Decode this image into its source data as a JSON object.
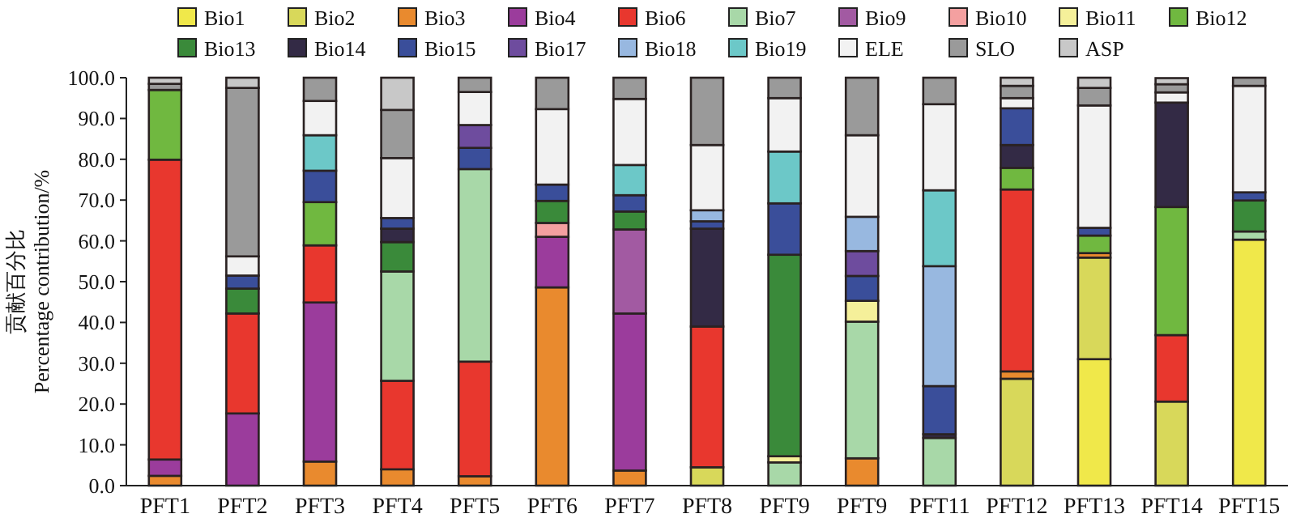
{
  "chart_data": {
    "type": "bar",
    "stacked": true,
    "ylabel": "贡献百分比\nPercentage contribution/%",
    "categories": [
      "PFT1",
      "PFT2",
      "PFT3",
      "PFT4",
      "PFT5",
      "PFT6",
      "PFT7",
      "PFT8",
      "PFT9",
      "PFT9",
      "PFT11",
      "PFT12",
      "PFT13",
      "PFT14",
      "PFT15"
    ],
    "ylim": [
      0,
      100
    ],
    "yticks": [
      {
        "value": 0,
        "label": "0.0"
      },
      {
        "value": 10,
        "label": "10.0"
      },
      {
        "value": 20,
        "label": "20.0"
      },
      {
        "value": 30,
        "label": "30.0"
      },
      {
        "value": 40,
        "label": "40.0"
      },
      {
        "value": 50,
        "label": "50.0"
      },
      {
        "value": 60,
        "label": "60.0"
      },
      {
        "value": 70,
        "label": "70.0"
      },
      {
        "value": 80,
        "label": "80.0"
      },
      {
        "value": 90,
        "label": "90.0"
      },
      {
        "value": 100,
        "label": "100.0"
      }
    ],
    "grid": false,
    "legend": "top",
    "series": [
      {
        "name": "Bio1",
        "color": "#f0e84a",
        "values": [
          null,
          null,
          null,
          null,
          null,
          null,
          null,
          null,
          null,
          null,
          null,
          null,
          31.0,
          null,
          60.3
        ]
      },
      {
        "name": "Bio2",
        "color": "#d8d85a",
        "values": [
          null,
          null,
          null,
          null,
          null,
          null,
          null,
          4.5,
          null,
          null,
          null,
          26.2,
          24.9,
          20.6,
          null
        ]
      },
      {
        "name": "Bio3",
        "color": "#e98a2e",
        "values": [
          2.4,
          null,
          5.9,
          4.0,
          2.3,
          48.6,
          3.7,
          null,
          null,
          6.7,
          null,
          1.8,
          1.1,
          null,
          null
        ]
      },
      {
        "name": "Bio4",
        "color": "#9b3c9c",
        "values": [
          4.0,
          17.7,
          39.0,
          null,
          null,
          12.4,
          38.5,
          null,
          null,
          null,
          null,
          null,
          null,
          null,
          null
        ]
      },
      {
        "name": "Bio6",
        "color": "#e8372e",
        "values": [
          73.5,
          24.5,
          14.0,
          21.7,
          28.1,
          null,
          null,
          34.5,
          null,
          null,
          null,
          44.6,
          null,
          16.3,
          null
        ]
      },
      {
        "name": "Bio7",
        "color": "#a8d8a8",
        "values": [
          null,
          null,
          null,
          26.8,
          47.2,
          null,
          null,
          null,
          5.7,
          33.5,
          11.7,
          null,
          null,
          null,
          2.0
        ]
      },
      {
        "name": "Bio9",
        "color": "#a25aa2",
        "values": [
          null,
          null,
          null,
          null,
          null,
          null,
          20.6,
          null,
          null,
          null,
          null,
          null,
          null,
          null,
          null
        ]
      },
      {
        "name": "Bio10",
        "color": "#f4a0a0",
        "values": [
          null,
          null,
          null,
          null,
          null,
          3.4,
          null,
          null,
          null,
          null,
          null,
          null,
          null,
          null,
          null
        ]
      },
      {
        "name": "Bio11",
        "color": "#f5f09a",
        "values": [
          null,
          null,
          null,
          null,
          null,
          null,
          null,
          null,
          1.5,
          5.1,
          null,
          null,
          null,
          null,
          null
        ]
      },
      {
        "name": "Bio12",
        "color": "#70b840",
        "values": [
          17.1,
          null,
          10.6,
          null,
          null,
          null,
          null,
          null,
          null,
          null,
          null,
          5.3,
          4.3,
          31.4,
          null
        ]
      },
      {
        "name": "Bio13",
        "color": "#3a8a3a",
        "values": [
          null,
          6.1,
          null,
          7.2,
          null,
          5.4,
          4.4,
          null,
          49.4,
          null,
          null,
          null,
          null,
          null,
          7.6
        ]
      },
      {
        "name": "Bio14",
        "color": "#332a45",
        "values": [
          null,
          null,
          null,
          3.3,
          null,
          null,
          null,
          24.0,
          null,
          null,
          0.9,
          5.6,
          null,
          25.6,
          null
        ]
      },
      {
        "name": "Bio15",
        "color": "#3a4e9a",
        "values": [
          null,
          3.2,
          7.7,
          2.6,
          5.2,
          4.0,
          4.0,
          1.8,
          12.6,
          6.1,
          11.8,
          9.0,
          1.9,
          null,
          2.0
        ]
      },
      {
        "name": "Bio17",
        "color": "#6e4c9e",
        "values": [
          null,
          null,
          null,
          null,
          5.6,
          null,
          null,
          null,
          null,
          6.1,
          null,
          null,
          null,
          null,
          null
        ]
      },
      {
        "name": "Bio18",
        "color": "#98b8e0",
        "values": [
          null,
          null,
          null,
          null,
          null,
          null,
          null,
          2.7,
          null,
          8.4,
          29.4,
          null,
          null,
          null,
          null
        ]
      },
      {
        "name": "Bio19",
        "color": "#6cc8c8",
        "values": [
          null,
          null,
          8.7,
          null,
          null,
          null,
          7.4,
          null,
          12.7,
          null,
          18.6,
          null,
          null,
          null,
          null
        ]
      },
      {
        "name": "ELE",
        "color": "#f2f2f2",
        "values": [
          null,
          4.7,
          8.4,
          14.7,
          8.1,
          18.5,
          16.2,
          16.0,
          13.1,
          20.0,
          21.1,
          2.5,
          30.0,
          2.5,
          26.1
        ]
      },
      {
        "name": "SLO",
        "color": "#9a9a9a",
        "values": [
          1.5,
          41.3,
          5.7,
          11.8,
          3.5,
          7.7,
          5.2,
          16.5,
          5.0,
          14.1,
          6.5,
          3.0,
          4.3,
          2.0,
          2.0
        ]
      },
      {
        "name": "ASP",
        "color": "#c8c8c8",
        "values": [
          1.5,
          2.5,
          null,
          7.9,
          null,
          null,
          null,
          null,
          null,
          null,
          null,
          2.0,
          2.5,
          1.5,
          null
        ]
      }
    ]
  }
}
